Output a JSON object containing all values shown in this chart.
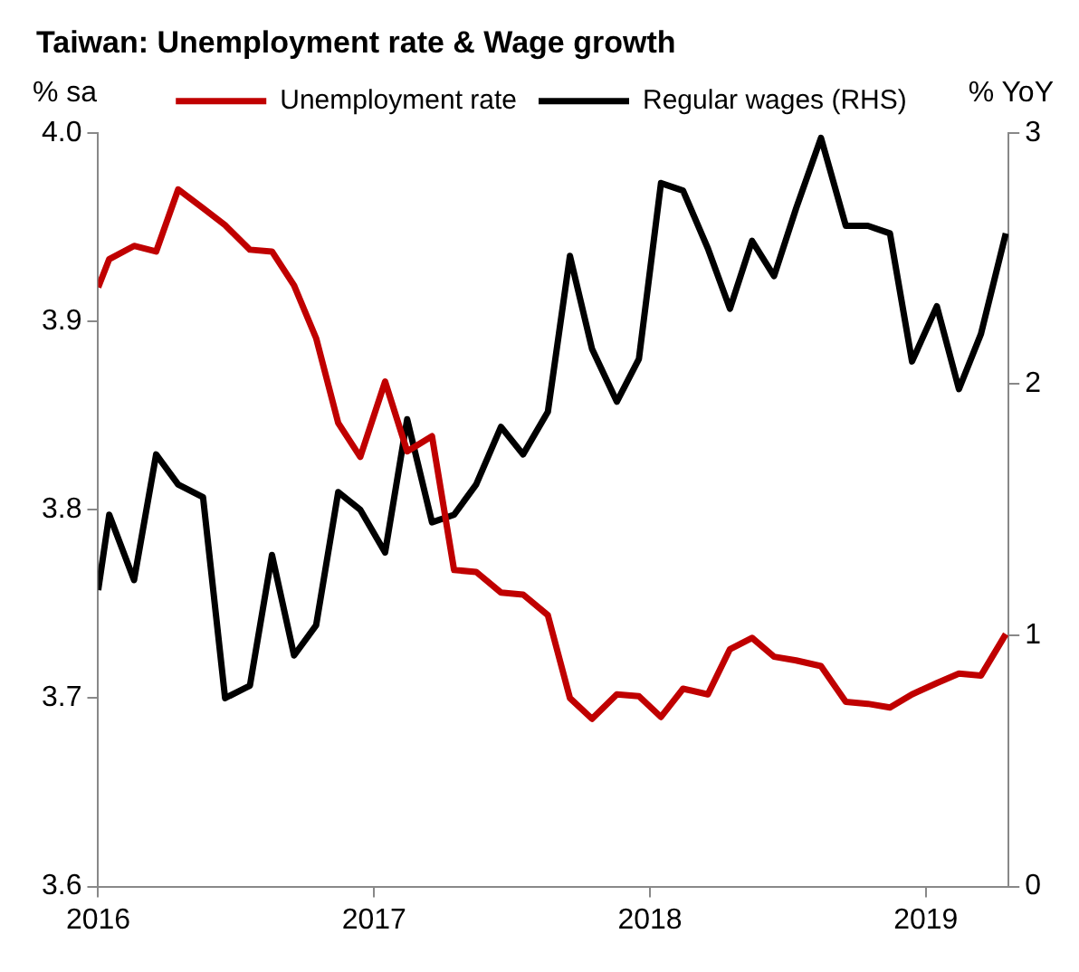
{
  "chart_data": {
    "type": "line",
    "title": "Taiwan: Unemployment rate & Wage growth",
    "ylabel": "% sa",
    "y2label": "% YoY",
    "x": [
      2016,
      2016.04,
      2016.13,
      2016.21,
      2016.29,
      2016.38,
      2016.46,
      2016.55,
      2016.63,
      2016.71,
      2016.79,
      2016.87,
      2016.95,
      2017.04,
      2017.12,
      2017.21,
      2017.29,
      2017.37,
      2017.46,
      2017.54,
      2017.63,
      2017.71,
      2017.79,
      2017.88,
      2017.96,
      2018.04,
      2018.12,
      2018.21,
      2018.29,
      2018.37,
      2018.45,
      2018.53,
      2018.62,
      2018.71,
      2018.79,
      2018.87,
      2018.95,
      2019.04,
      2019.12,
      2019.2,
      2019.29
    ],
    "series": [
      {
        "name": "Unemployment rate",
        "color": "#c00000",
        "values": [
          3.918,
          3.933,
          3.94,
          3.937,
          3.97,
          3.96,
          3.951,
          3.938,
          3.937,
          3.919,
          3.891,
          3.846,
          3.828,
          3.868,
          3.831,
          3.839,
          3.768,
          3.767,
          3.756,
          3.755,
          3.744,
          3.7,
          3.689,
          3.702,
          3.701,
          3.69,
          3.705,
          3.702,
          3.726,
          3.732,
          3.722,
          3.72,
          3.717,
          3.698,
          3.697,
          3.695,
          3.702,
          3.708,
          3.713,
          3.712,
          3.734
        ]
      },
      {
        "name": "Regular wages (RHS)",
        "color": "#000000",
        "axis": "y2",
        "values": [
          1.18,
          1.48,
          1.22,
          1.72,
          1.6,
          1.55,
          0.75,
          0.8,
          1.32,
          0.92,
          1.04,
          1.57,
          1.5,
          1.33,
          1.86,
          1.45,
          1.48,
          1.6,
          1.83,
          1.72,
          1.89,
          2.51,
          2.14,
          1.93,
          2.1,
          2.8,
          2.77,
          2.54,
          2.3,
          2.57,
          2.43,
          2.7,
          2.98,
          2.63,
          2.63,
          2.6,
          2.09,
          2.31,
          1.98,
          2.2,
          2.6
        ]
      }
    ],
    "xlim": [
      2016,
      2019.3
    ],
    "xticks": [
      2016,
      2017,
      2018,
      2019
    ],
    "ylim": [
      3.6,
      4.0
    ],
    "yticks": [
      3.6,
      3.7,
      3.8,
      3.9,
      {
        "value": 4.0,
        "label": "4.0"
      }
    ],
    "y2lim": [
      0,
      3
    ],
    "y2ticks": [
      0,
      1,
      2,
      3
    ],
    "grid": false,
    "legend": "top",
    "marker": "none",
    "line_style": "solid"
  }
}
